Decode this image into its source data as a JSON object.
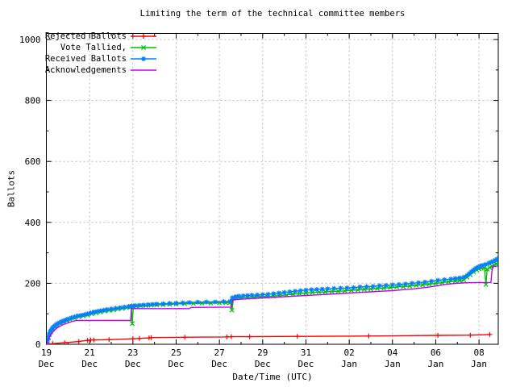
{
  "chart_data": {
    "type": "line",
    "title": "Limiting the term of the technical committee members",
    "xlabel": "Date/Time (UTC)",
    "ylabel": "Ballots",
    "ylim": [
      0,
      1000
    ],
    "xlim_days": [
      0,
      20.9
    ],
    "grid": true,
    "legend_position": "top-left",
    "background": "#ffffff",
    "grid_color": "#b8b8b8",
    "frame_color": "#000000",
    "y_ticks": [
      {
        "value": 0,
        "label": "0"
      },
      {
        "value": 200,
        "label": "200"
      },
      {
        "value": 400,
        "label": "400"
      },
      {
        "value": 600,
        "label": "600"
      },
      {
        "value": 800,
        "label": "800"
      },
      {
        "value": 1000,
        "label": "1000"
      }
    ],
    "y_minor": [
      100,
      300,
      500,
      700,
      900
    ],
    "x_ticks": [
      {
        "day": 0,
        "label_day": "19",
        "label_month": "Dec"
      },
      {
        "day": 2,
        "label_day": "21",
        "label_month": "Dec"
      },
      {
        "day": 4,
        "label_day": "23",
        "label_month": "Dec"
      },
      {
        "day": 6,
        "label_day": "25",
        "label_month": "Dec"
      },
      {
        "day": 8,
        "label_day": "27",
        "label_month": "Dec"
      },
      {
        "day": 10,
        "label_day": "29",
        "label_month": "Dec"
      },
      {
        "day": 12,
        "label_day": "31",
        "label_month": "Dec"
      },
      {
        "day": 14,
        "label_day": "02",
        "label_month": "Jan"
      },
      {
        "day": 16,
        "label_day": "04",
        "label_month": "Jan"
      },
      {
        "day": 18,
        "label_day": "06",
        "label_month": "Jan"
      },
      {
        "day": 20,
        "label_day": "08",
        "label_month": "Jan"
      }
    ],
    "x_minor_days": [
      1,
      3,
      5,
      7,
      9,
      11,
      13,
      15,
      17,
      19
    ],
    "series": [
      {
        "label": "Rejected Ballots",
        "color": "#ff0000",
        "marker": "plus",
        "points": [
          [
            0,
            0
          ],
          [
            0.3,
            2
          ],
          [
            0.85,
            5
          ],
          [
            1.5,
            9
          ],
          [
            1.9,
            13
          ],
          [
            2.05,
            14
          ],
          [
            2.2,
            14
          ],
          [
            2.9,
            15
          ],
          [
            4,
            18
          ],
          [
            4.3,
            19
          ],
          [
            4.75,
            21
          ],
          [
            4.85,
            22
          ],
          [
            6.4,
            23
          ],
          [
            8.35,
            24
          ],
          [
            8.55,
            25
          ],
          [
            9.4,
            25
          ],
          [
            11.6,
            26
          ],
          [
            14.9,
            27
          ],
          [
            18.1,
            29
          ],
          [
            19.6,
            30
          ],
          [
            20.5,
            32
          ]
        ]
      },
      {
        "label": "Vote Tallied,",
        "color": "#00c000",
        "marker": "cross",
        "points": [
          [
            0,
            0
          ],
          [
            0.05,
            10
          ],
          [
            0.1,
            22
          ],
          [
            0.15,
            32
          ],
          [
            0.2,
            40
          ],
          [
            0.3,
            50
          ],
          [
            0.4,
            57
          ],
          [
            0.5,
            62
          ],
          [
            0.65,
            68
          ],
          [
            0.8,
            73
          ],
          [
            0.95,
            77
          ],
          [
            1.1,
            81
          ],
          [
            1.3,
            86
          ],
          [
            1.5,
            90
          ],
          [
            1.7,
            93
          ],
          [
            1.9,
            96
          ],
          [
            2.1,
            100
          ],
          [
            2.3,
            103
          ],
          [
            2.5,
            106
          ],
          [
            2.7,
            109
          ],
          [
            2.9,
            111
          ],
          [
            3.1,
            113
          ],
          [
            3.3,
            116
          ],
          [
            3.5,
            118
          ],
          [
            3.7,
            120
          ],
          [
            3.85,
            122
          ],
          [
            3.93,
            123
          ],
          [
            3.97,
            68
          ],
          [
            4.02,
            124
          ],
          [
            4.15,
            125
          ],
          [
            4.35,
            126
          ],
          [
            4.6,
            127
          ],
          [
            4.85,
            128
          ],
          [
            5.1,
            129
          ],
          [
            5.4,
            130
          ],
          [
            5.7,
            131
          ],
          [
            6,
            132
          ],
          [
            6.4,
            133
          ],
          [
            6.8,
            134
          ],
          [
            7.2,
            135
          ],
          [
            7.6,
            135
          ],
          [
            8,
            136
          ],
          [
            8.3,
            136
          ],
          [
            8.5,
            137
          ],
          [
            8.58,
            112
          ],
          [
            8.65,
            150
          ],
          [
            8.8,
            152
          ],
          [
            9,
            153
          ],
          [
            9.3,
            154
          ],
          [
            9.6,
            155
          ],
          [
            9.9,
            156
          ],
          [
            10.2,
            157
          ],
          [
            10.5,
            158
          ],
          [
            10.8,
            160
          ],
          [
            11.1,
            162
          ],
          [
            11.4,
            164
          ],
          [
            11.7,
            166
          ],
          [
            12,
            168
          ],
          [
            12.3,
            170
          ],
          [
            12.6,
            171
          ],
          [
            12.9,
            172
          ],
          [
            13.2,
            173
          ],
          [
            13.5,
            174
          ],
          [
            13.8,
            175
          ],
          [
            14.1,
            177
          ],
          [
            14.4,
            178
          ],
          [
            14.7,
            180
          ],
          [
            15,
            181
          ],
          [
            15.3,
            183
          ],
          [
            15.6,
            184
          ],
          [
            15.9,
            186
          ],
          [
            16.2,
            188
          ],
          [
            16.5,
            189
          ],
          [
            16.8,
            191
          ],
          [
            17.1,
            193
          ],
          [
            17.4,
            195
          ],
          [
            17.7,
            197
          ],
          [
            18,
            200
          ],
          [
            18.3,
            202
          ],
          [
            18.6,
            205
          ],
          [
            18.9,
            207
          ],
          [
            19.1,
            209
          ],
          [
            19.3,
            211
          ],
          [
            19.45,
            220
          ],
          [
            19.6,
            228
          ],
          [
            19.75,
            237
          ],
          [
            19.9,
            244
          ],
          [
            20,
            248
          ],
          [
            20.1,
            250
          ],
          [
            20.25,
            252
          ],
          [
            20.32,
            196
          ],
          [
            20.38,
            246
          ],
          [
            20.5,
            252
          ],
          [
            20.6,
            256
          ],
          [
            20.7,
            260
          ],
          [
            20.8,
            264
          ],
          [
            20.88,
            268
          ]
        ]
      },
      {
        "label": "Received Ballots",
        "color": "#0080ff",
        "marker": "asterisk",
        "points": [
          [
            0,
            0
          ],
          [
            0.04,
            8
          ],
          [
            0.08,
            18
          ],
          [
            0.12,
            30
          ],
          [
            0.16,
            38
          ],
          [
            0.2,
            45
          ],
          [
            0.25,
            50
          ],
          [
            0.3,
            55
          ],
          [
            0.35,
            58
          ],
          [
            0.4,
            61
          ],
          [
            0.45,
            64
          ],
          [
            0.5,
            67
          ],
          [
            0.6,
            71
          ],
          [
            0.7,
            74
          ],
          [
            0.8,
            77
          ],
          [
            0.9,
            80
          ],
          [
            1,
            83
          ],
          [
            1.15,
            87
          ],
          [
            1.3,
            90
          ],
          [
            1.45,
            93
          ],
          [
            1.6,
            95
          ],
          [
            1.75,
            97
          ],
          [
            1.9,
            100
          ],
          [
            2.05,
            103
          ],
          [
            2.2,
            106
          ],
          [
            2.35,
            108
          ],
          [
            2.5,
            110
          ],
          [
            2.65,
            112
          ],
          [
            2.8,
            114
          ],
          [
            3,
            116
          ],
          [
            3.2,
            118
          ],
          [
            3.4,
            120
          ],
          [
            3.6,
            122
          ],
          [
            3.8,
            124
          ],
          [
            3.95,
            126
          ],
          [
            4.1,
            127
          ],
          [
            4.3,
            128
          ],
          [
            4.5,
            129
          ],
          [
            4.7,
            130
          ],
          [
            4.9,
            131
          ],
          [
            5.1,
            132
          ],
          [
            5.4,
            133
          ],
          [
            5.7,
            134
          ],
          [
            6,
            135
          ],
          [
            6.3,
            136
          ],
          [
            6.6,
            137
          ],
          [
            7,
            138
          ],
          [
            7.4,
            139
          ],
          [
            7.8,
            139
          ],
          [
            8.2,
            140
          ],
          [
            8.5,
            141
          ],
          [
            8.6,
            153
          ],
          [
            8.75,
            156
          ],
          [
            8.9,
            158
          ],
          [
            9.1,
            159
          ],
          [
            9.3,
            160
          ],
          [
            9.5,
            161
          ],
          [
            9.75,
            162
          ],
          [
            10,
            163
          ],
          [
            10.25,
            164
          ],
          [
            10.5,
            166
          ],
          [
            10.75,
            168
          ],
          [
            11,
            170
          ],
          [
            11.25,
            172
          ],
          [
            11.5,
            174
          ],
          [
            11.75,
            176
          ],
          [
            12,
            178
          ],
          [
            12.25,
            179
          ],
          [
            12.5,
            180
          ],
          [
            12.75,
            181
          ],
          [
            13,
            182
          ],
          [
            13.3,
            183
          ],
          [
            13.6,
            184
          ],
          [
            13.9,
            185
          ],
          [
            14.2,
            186
          ],
          [
            14.5,
            188
          ],
          [
            14.8,
            189
          ],
          [
            15.1,
            190
          ],
          [
            15.4,
            192
          ],
          [
            15.7,
            193
          ],
          [
            16,
            195
          ],
          [
            16.3,
            196
          ],
          [
            16.6,
            198
          ],
          [
            16.9,
            200
          ],
          [
            17.2,
            202
          ],
          [
            17.5,
            204
          ],
          [
            17.8,
            207
          ],
          [
            18.1,
            210
          ],
          [
            18.4,
            212
          ],
          [
            18.7,
            214
          ],
          [
            18.9,
            216
          ],
          [
            19.1,
            218
          ],
          [
            19.3,
            220
          ],
          [
            19.45,
            226
          ],
          [
            19.55,
            232
          ],
          [
            19.65,
            238
          ],
          [
            19.75,
            244
          ],
          [
            19.85,
            249
          ],
          [
            19.95,
            253
          ],
          [
            20.05,
            256
          ],
          [
            20.15,
            259
          ],
          [
            20.3,
            262
          ],
          [
            20.45,
            266
          ],
          [
            20.55,
            269
          ],
          [
            20.65,
            272
          ],
          [
            20.75,
            276
          ],
          [
            20.85,
            280
          ]
        ]
      },
      {
        "label": "Acknowledgements",
        "color": "#c000ff",
        "marker": "none",
        "points": [
          [
            0,
            0
          ],
          [
            0.05,
            8
          ],
          [
            0.1,
            16
          ],
          [
            0.15,
            24
          ],
          [
            0.2,
            31
          ],
          [
            0.3,
            40
          ],
          [
            0.4,
            48
          ],
          [
            0.5,
            54
          ],
          [
            0.65,
            60
          ],
          [
            0.8,
            65
          ],
          [
            1,
            70
          ],
          [
            1.2,
            75
          ],
          [
            1.4,
            78
          ],
          [
            3.9,
            78
          ],
          [
            3.93,
            117
          ],
          [
            6.6,
            117
          ],
          [
            6.7,
            121
          ],
          [
            8.55,
            122
          ],
          [
            8.62,
            146
          ],
          [
            9,
            148
          ],
          [
            9.5,
            150
          ],
          [
            10,
            152
          ],
          [
            10.5,
            154
          ],
          [
            11,
            156
          ],
          [
            11.5,
            158
          ],
          [
            12,
            160
          ],
          [
            12.5,
            162
          ],
          [
            13,
            164
          ],
          [
            13.5,
            166
          ],
          [
            14,
            168
          ],
          [
            14.5,
            170
          ],
          [
            15,
            172
          ],
          [
            15.5,
            174
          ],
          [
            16,
            176
          ],
          [
            16.5,
            179
          ],
          [
            17,
            182
          ],
          [
            17.5,
            186
          ],
          [
            18,
            191
          ],
          [
            18.4,
            196
          ],
          [
            18.8,
            199
          ],
          [
            19.2,
            201
          ],
          [
            19.5,
            202
          ],
          [
            20.55,
            203
          ],
          [
            20.62,
            255
          ],
          [
            20.88,
            257
          ]
        ]
      }
    ]
  }
}
